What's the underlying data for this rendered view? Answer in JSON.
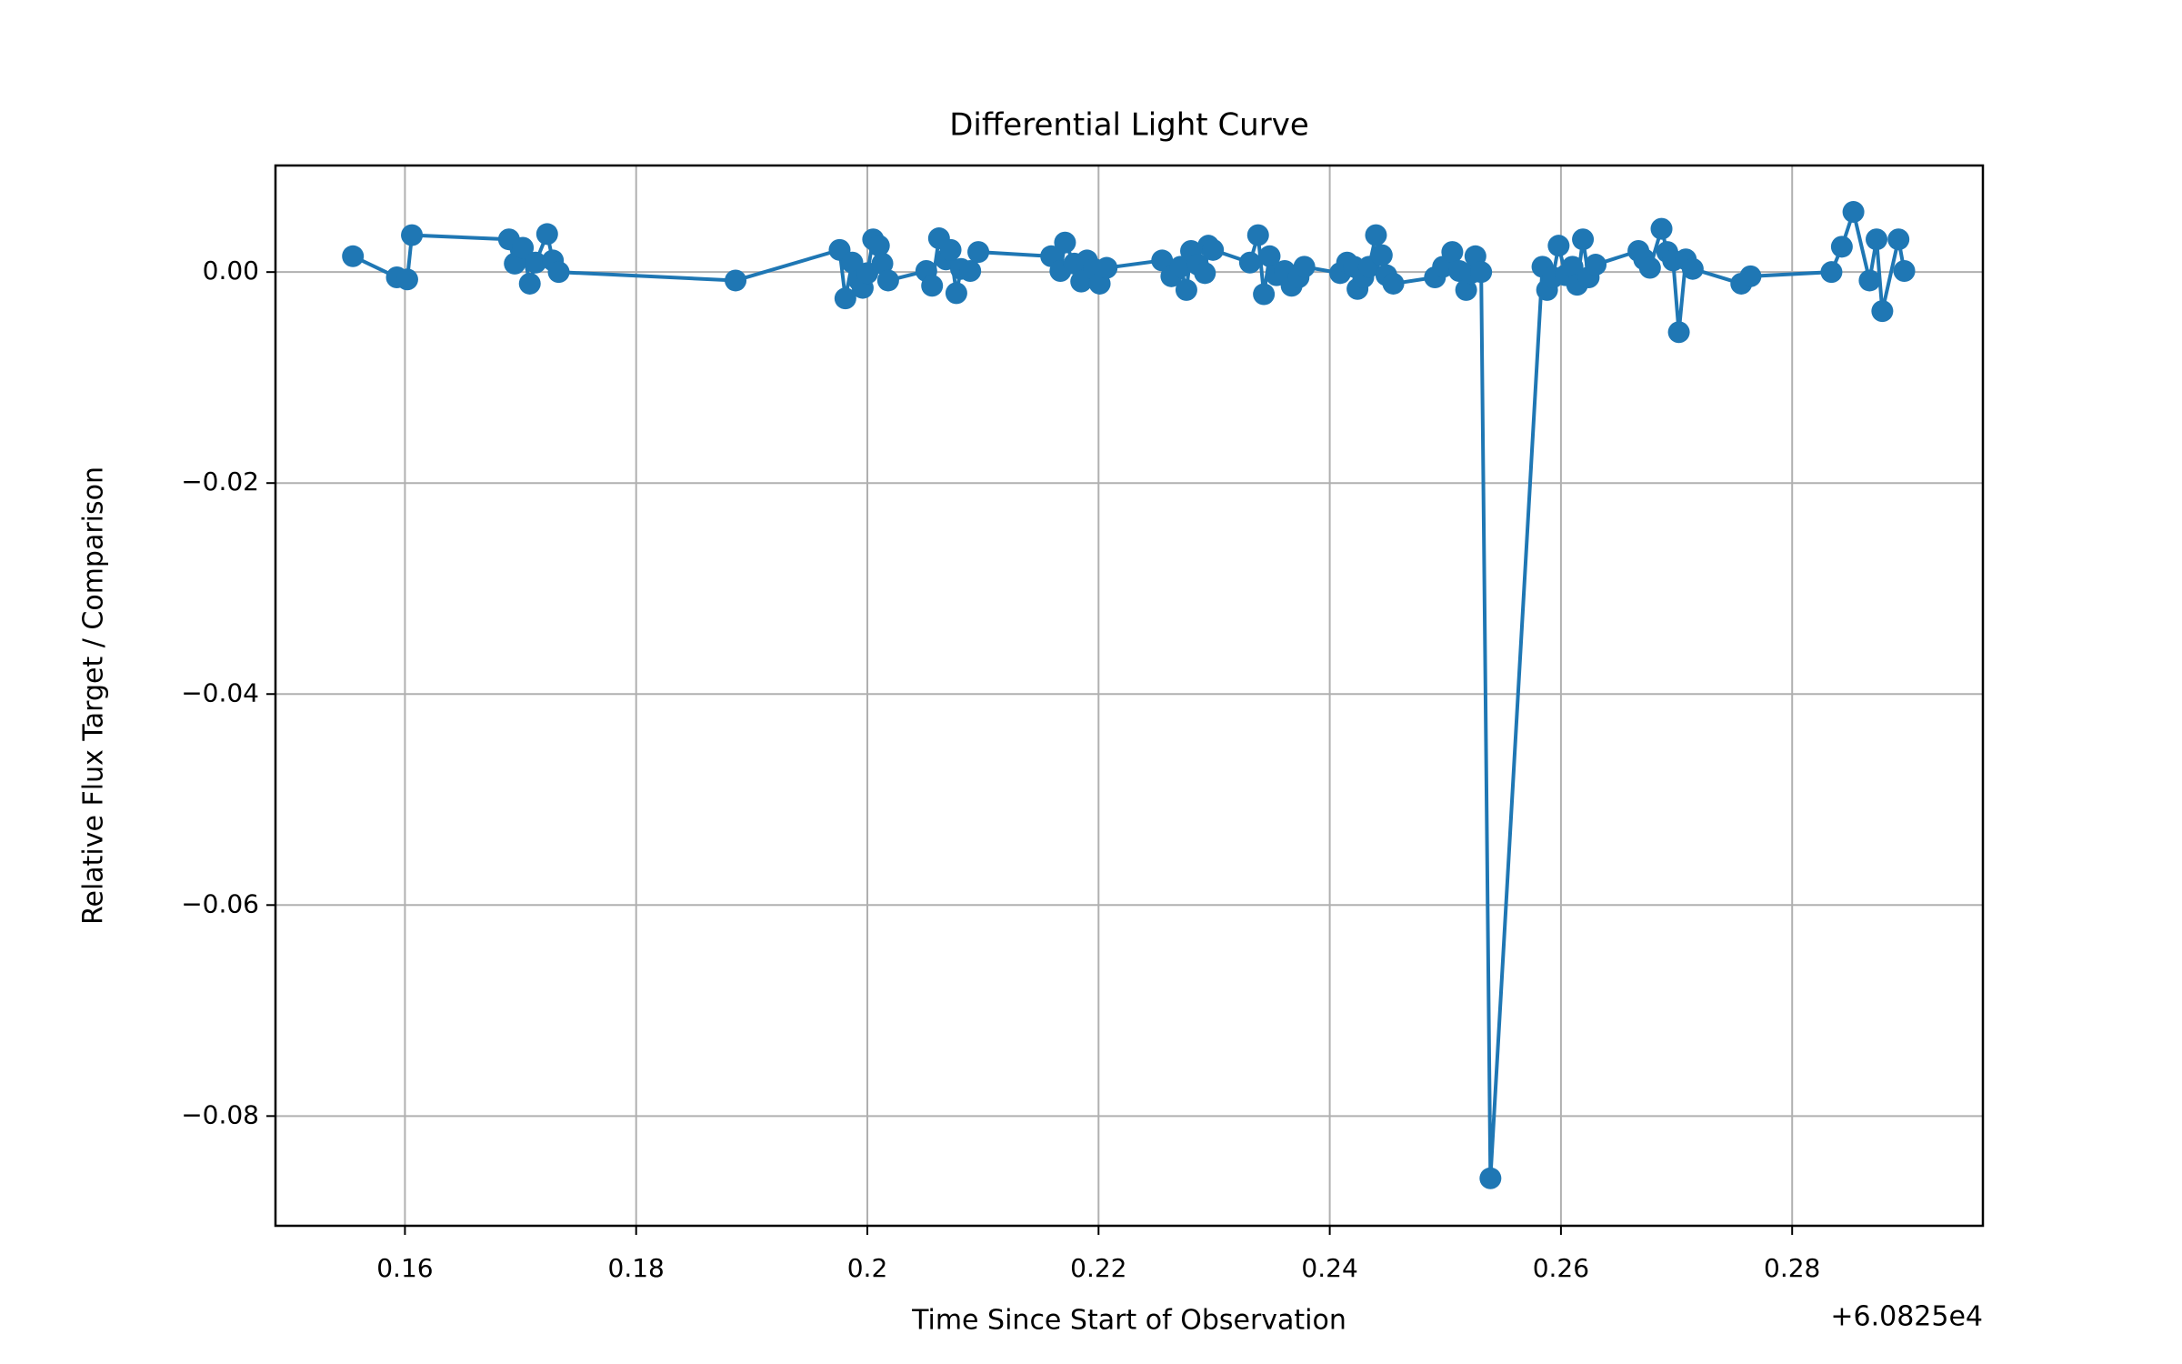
{
  "chart_data": {
    "type": "line",
    "title": "Differential Light Curve",
    "x_label": "Time Since Start of Observation",
    "y_label": "Relative Flux Target / Comparison",
    "x_offset_label": "+6.0825e4",
    "x": [
      0.1555,
      0.1593,
      0.1602,
      0.1606,
      0.169,
      0.1695,
      0.1702,
      0.1708,
      0.1713,
      0.1723,
      0.1728,
      0.1733,
      0.1886,
      0.1976,
      0.1981,
      0.1987,
      0.1993,
      0.1996,
      0.2,
      0.2005,
      0.201,
      0.2013,
      0.2018,
      0.2051,
      0.2056,
      0.2062,
      0.2068,
      0.2072,
      0.2077,
      0.2081,
      0.2089,
      0.2096,
      0.2159,
      0.2167,
      0.2171,
      0.2179,
      0.2185,
      0.219,
      0.2196,
      0.2201,
      0.2207,
      0.2255,
      0.2263,
      0.2271,
      0.2276,
      0.228,
      0.2286,
      0.2292,
      0.2295,
      0.2299,
      0.2331,
      0.2338,
      0.2343,
      0.2348,
      0.2354,
      0.2361,
      0.2367,
      0.2373,
      0.2378,
      0.2409,
      0.2415,
      0.2421,
      0.2424,
      0.2429,
      0.2434,
      0.244,
      0.2445,
      0.2449,
      0.2455,
      0.2491,
      0.2498,
      0.2506,
      0.2512,
      0.2518,
      0.2522,
      0.2526,
      0.2531,
      0.2539,
      0.2584,
      0.2588,
      0.2593,
      0.2598,
      0.2604,
      0.261,
      0.2614,
      0.2619,
      0.2624,
      0.263,
      0.2667,
      0.2672,
      0.2677,
      0.2687,
      0.2692,
      0.2697,
      0.2702,
      0.2708,
      0.2714,
      0.2756,
      0.2764,
      0.2834,
      0.2843,
      0.2853,
      0.2867,
      0.2873,
      0.2878,
      0.2892,
      0.2897
    ],
    "series": [
      {
        "name": "Relative flux",
        "color": "#1f77b4",
        "values": [
          0.0015,
          -0.0005,
          -0.0007,
          0.0035,
          0.0031,
          0.0008,
          0.0023,
          -0.0011,
          0.0009,
          0.0036,
          0.0011,
          0.0,
          -0.0008,
          0.0021,
          -0.0025,
          0.0009,
          -0.0008,
          -0.0015,
          -0.0001,
          0.0031,
          0.0025,
          0.0008,
          -0.0008,
          0.0001,
          -0.0013,
          0.0032,
          0.0012,
          0.0021,
          -0.002,
          0.0003,
          0.0001,
          0.0019,
          0.0015,
          0.0001,
          0.0028,
          0.0008,
          -0.0009,
          0.0011,
          0.0003,
          -0.0011,
          0.0004,
          0.0011,
          -0.0004,
          0.0005,
          -0.0017,
          0.002,
          0.0007,
          -0.0001,
          0.0025,
          0.0021,
          0.0009,
          0.0035,
          -0.0021,
          0.0015,
          -0.0003,
          0.0001,
          -0.0013,
          -0.0005,
          0.0005,
          -0.0001,
          0.0009,
          0.0005,
          -0.0016,
          -0.0005,
          0.0005,
          0.0035,
          0.0016,
          -0.0003,
          -0.0011,
          -0.0005,
          0.0005,
          0.0019,
          0.0001,
          -0.0017,
          -0.0001,
          0.0015,
          0.0,
          -0.0859,
          0.0005,
          -0.0017,
          -0.0005,
          0.0025,
          -0.0003,
          0.0005,
          -0.0012,
          0.0031,
          -0.0005,
          0.0007,
          0.002,
          0.0012,
          0.0004,
          0.0041,
          0.0019,
          0.0011,
          -0.0057,
          0.0012,
          0.0003,
          -0.0011,
          -0.0004,
          0.0,
          0.0024,
          0.0057,
          -0.0008,
          0.0031,
          -0.0037,
          0.0031,
          0.0001
        ]
      }
    ],
    "xlim": [
      0.1488,
      0.2965
    ],
    "ylim": [
      -0.0904,
      0.0101
    ],
    "xticks": [
      0.16,
      0.18,
      0.2,
      0.22,
      0.24,
      0.26,
      0.28
    ],
    "yticks": [
      {
        "value": 0,
        "label": "0.00"
      },
      {
        "value": -0.02,
        "label": "−0.02"
      },
      {
        "value": -0.04,
        "label": "−0.04"
      },
      {
        "value": -0.06,
        "label": "−0.06"
      },
      {
        "value": -0.08,
        "label": "−0.08"
      }
    ],
    "grid": true
  }
}
